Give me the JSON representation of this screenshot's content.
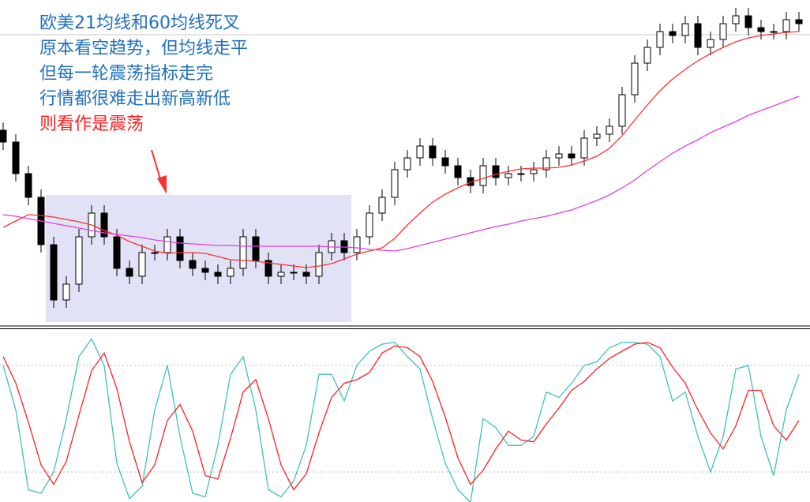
{
  "chart_data": [
    {
      "type": "candlestick",
      "annotations": [
        "欧美21均线和60均线死叉",
        "原本看空趋势，但均线走平",
        "但每一轮震荡指标走完",
        "行情都很难走出新高新低",
        "则看作是震荡"
      ],
      "annotation_colors": [
        "#1f6fbf",
        "#1f6fbf",
        "#1f6fbf",
        "#1f6fbf",
        "#ff2020"
      ],
      "ylim": [
        0,
        41
      ],
      "hline": 36.6,
      "up_color": "#ffffff",
      "down_color": "#000000",
      "open": [
        24.5,
        23.0,
        19.0,
        16.0,
        10.0,
        3.0,
        5.0,
        11.0,
        14.0,
        11.0,
        7.0,
        6.0,
        9.0,
        9.0,
        11.0,
        8.0,
        7.0,
        6.5,
        6.0,
        7.0,
        11.0,
        8.0,
        6.0,
        6.5,
        6.5,
        6.0,
        9.0,
        10.5,
        9.0,
        11.0,
        14.0,
        16.0,
        19.5,
        21.0,
        22.5,
        21.0,
        20.0,
        18.5,
        17.5,
        20.0,
        18.5,
        19.0,
        19.0,
        19.5,
        21.0,
        21.5,
        21.0,
        23.5,
        24.0,
        25.0,
        29.0,
        33.0,
        35.0,
        37.0,
        36.5,
        38.0,
        35.0,
        36.0,
        38.0,
        39.0,
        37.5,
        37.0,
        37.0,
        38.5
      ],
      "high": [
        25.5,
        24.0,
        20.0,
        17.0,
        11.0,
        6.0,
        12.0,
        15.0,
        15.0,
        12.0,
        8.0,
        10.0,
        10.0,
        12.0,
        12.0,
        9.0,
        8.0,
        7.5,
        8.0,
        12.0,
        12.0,
        9.0,
        7.5,
        7.5,
        7.5,
        10.0,
        11.5,
        11.5,
        12.0,
        15.0,
        17.0,
        20.5,
        22.0,
        23.5,
        23.5,
        22.0,
        21.0,
        19.5,
        21.0,
        21.0,
        20.0,
        20.0,
        20.5,
        22.0,
        22.5,
        22.5,
        24.5,
        25.0,
        26.0,
        30.0,
        34.0,
        36.0,
        38.0,
        38.0,
        39.0,
        39.0,
        37.0,
        39.0,
        40.0,
        40.0,
        38.5,
        38.0,
        39.5,
        39.5
      ],
      "low": [
        22.0,
        18.0,
        15.0,
        9.0,
        2.0,
        2.0,
        4.0,
        10.0,
        10.0,
        6.0,
        5.0,
        5.0,
        8.0,
        8.0,
        7.0,
        6.0,
        5.5,
        5.0,
        5.0,
        6.0,
        7.0,
        5.0,
        5.0,
        5.5,
        5.0,
        5.0,
        8.0,
        8.0,
        8.0,
        10.0,
        13.0,
        15.0,
        18.5,
        20.0,
        20.0,
        19.0,
        17.5,
        16.5,
        16.5,
        17.5,
        17.5,
        18.0,
        18.0,
        18.5,
        20.0,
        20.0,
        20.0,
        22.5,
        23.0,
        24.0,
        28.0,
        32.0,
        34.0,
        35.5,
        35.5,
        34.0,
        34.0,
        35.0,
        37.0,
        36.5,
        36.0,
        36.0,
        36.0,
        37.0
      ],
      "close": [
        23.0,
        19.0,
        16.0,
        10.0,
        3.0,
        5.0,
        11.0,
        14.0,
        11.0,
        7.0,
        6.0,
        9.0,
        9.0,
        11.0,
        8.0,
        7.0,
        6.5,
        6.0,
        7.0,
        11.0,
        8.0,
        6.0,
        6.5,
        6.5,
        6.0,
        9.0,
        10.5,
        9.0,
        11.0,
        14.0,
        16.0,
        19.5,
        21.0,
        22.5,
        21.0,
        20.0,
        18.5,
        17.5,
        20.0,
        18.5,
        19.0,
        19.0,
        19.5,
        21.0,
        21.5,
        21.0,
        23.5,
        24.0,
        25.0,
        29.0,
        33.0,
        35.0,
        37.0,
        36.5,
        38.0,
        35.0,
        36.0,
        38.0,
        39.0,
        37.5,
        37.0,
        37.0,
        38.5,
        38.0
      ],
      "series": [
        {
          "color": "#ff3030",
          "values": [
            12.2,
            13.0,
            13.8,
            13.7,
            13.5,
            13.2,
            12.9,
            12.5,
            11.8,
            11.2,
            10.4,
            9.8,
            9.2,
            8.9,
            9.0,
            9.0,
            8.9,
            8.5,
            8.1,
            8.0,
            7.9,
            7.7,
            7.5,
            7.3,
            7.1,
            7.3,
            7.6,
            8.2,
            8.8,
            9.2,
            9.6,
            10.8,
            12.5,
            14.0,
            15.4,
            16.4,
            17.2,
            17.9,
            18.4,
            18.9,
            19.3,
            19.6,
            19.7,
            19.7,
            19.8,
            20.1,
            20.6,
            21.2,
            22.2,
            23.8,
            25.8,
            27.7,
            29.5,
            31.0,
            32.2,
            33.3,
            34.2,
            35.0,
            35.7,
            36.2,
            36.5,
            36.7,
            36.9,
            37.0
          ]
        },
        {
          "color": "#e040e0",
          "values": [
            13.8,
            13.6,
            13.3,
            13.0,
            12.7,
            12.4,
            12.1,
            11.8,
            11.5,
            11.3,
            11.1,
            10.9,
            10.6,
            10.4,
            10.2,
            10.1,
            10.0,
            9.9,
            9.9,
            9.8,
            9.8,
            9.8,
            9.8,
            9.8,
            9.8,
            9.8,
            9.7,
            9.7,
            9.6,
            9.4,
            9.3,
            9.2,
            9.5,
            9.9,
            10.3,
            10.7,
            11.1,
            11.5,
            11.9,
            12.3,
            12.6,
            13.0,
            13.3,
            13.6,
            14.0,
            14.4,
            15.0,
            15.6,
            16.3,
            17.2,
            18.2,
            19.4,
            20.5,
            21.6,
            22.5,
            23.3,
            24.2,
            24.9,
            25.6,
            26.4,
            27.0,
            27.6,
            28.2,
            28.8
          ]
        }
      ]
    },
    {
      "type": "line",
      "ylim": [
        0,
        100
      ],
      "levels": [
        20,
        80
      ],
      "series": [
        {
          "color": "#40c0c0",
          "values": [
            80,
            55,
            10,
            8,
            20,
            50,
            85,
            95,
            80,
            25,
            5,
            12,
            55,
            80,
            40,
            8,
            6,
            35,
            75,
            85,
            55,
            10,
            6,
            15,
            35,
            75,
            75,
            60,
            80,
            88,
            92,
            93,
            85,
            78,
            50,
            25,
            10,
            3,
            50,
            45,
            35,
            35,
            40,
            65,
            62,
            70,
            80,
            82,
            90,
            93,
            93,
            92,
            85,
            60,
            65,
            40,
            20,
            40,
            78,
            80,
            40,
            18,
            55,
            75
          ]
        },
        {
          "color": "#ff2020",
          "values": [
            85,
            70,
            48,
            24,
            13,
            26,
            52,
            77,
            87,
            67,
            37,
            14,
            24,
            49,
            58,
            43,
            18,
            16,
            39,
            65,
            72,
            50,
            24,
            10,
            19,
            42,
            62,
            70,
            72,
            76,
            87,
            91,
            90,
            85,
            71,
            51,
            28,
            13,
            21,
            33,
            43,
            38,
            37,
            47,
            56,
            66,
            71,
            78,
            84,
            88,
            92,
            93,
            90,
            79,
            70,
            55,
            42,
            33,
            46,
            66,
            66,
            46,
            38,
            49
          ]
        }
      ]
    }
  ]
}
